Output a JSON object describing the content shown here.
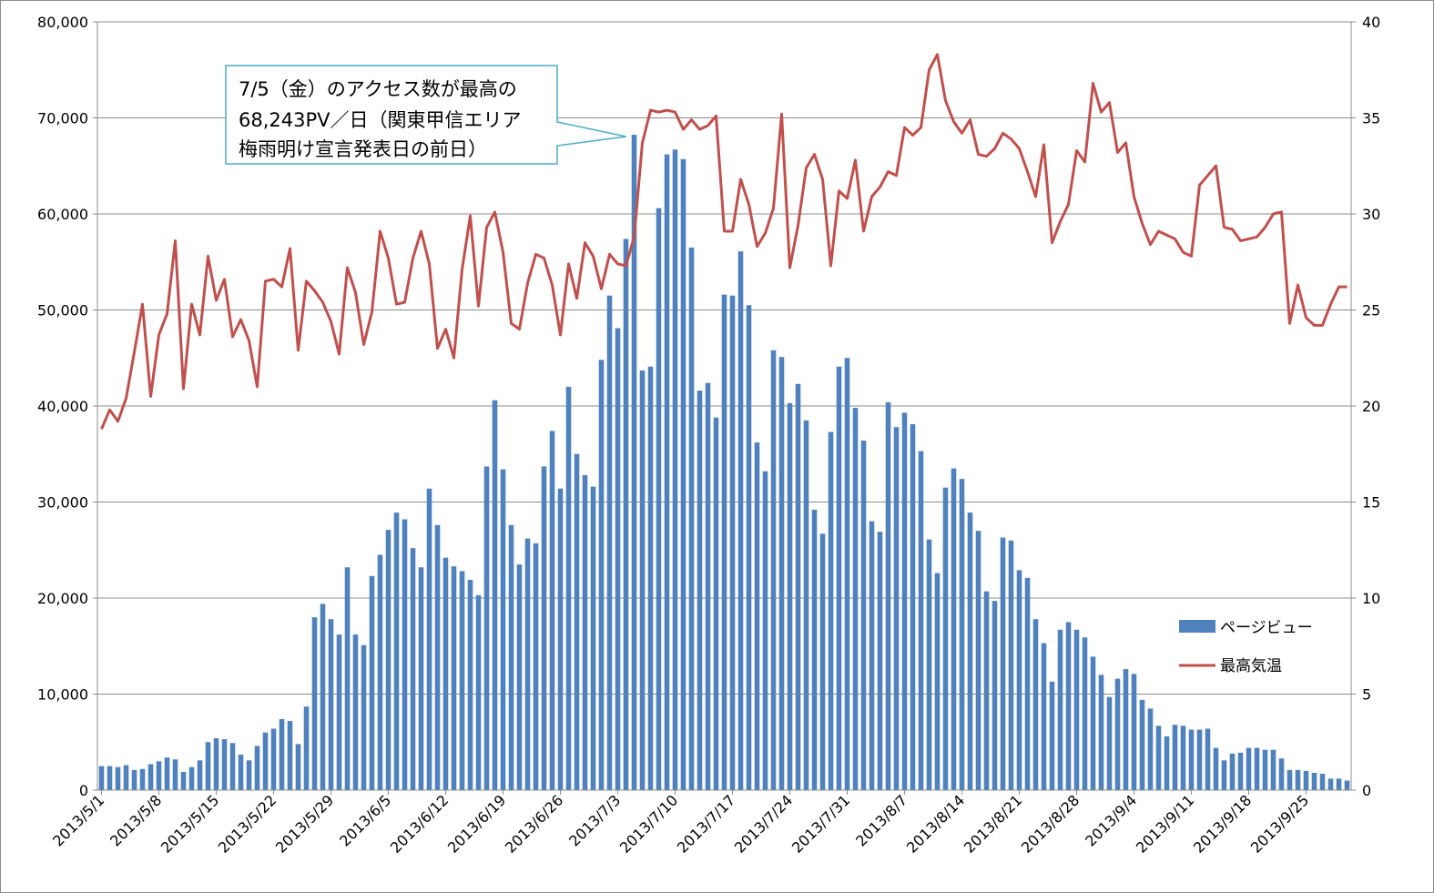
{
  "chart_data": {
    "type": "bar+line",
    "title": "",
    "xlabel": "",
    "ylabel": "",
    "ylim_left": [
      0,
      80000
    ],
    "ylim_right": [
      0,
      40
    ],
    "yticks_left": [
      "0",
      "10,000",
      "20,000",
      "30,000",
      "40,000",
      "50,000",
      "60,000",
      "70,000",
      "80,000"
    ],
    "yticks_right": [
      "0",
      "5",
      "10",
      "15",
      "20",
      "25",
      "30",
      "35",
      "40"
    ],
    "xtick_labels": [
      "2013/5/1",
      "2013/5/8",
      "2013/5/15",
      "2013/5/22",
      "2013/5/29",
      "2013/6/5",
      "2013/6/12",
      "2013/6/19",
      "2013/6/26",
      "2013/7/3",
      "2013/7/10",
      "2013/7/17",
      "2013/7/24",
      "2013/7/31",
      "2013/8/7",
      "2013/8/14",
      "2013/8/21",
      "2013/8/28",
      "2013/9/4",
      "2013/9/11",
      "2013/9/18",
      "2013/9/25"
    ],
    "grid": true,
    "legend_position": "right",
    "x_start": "2013/5/1",
    "x_end": "2013/9/30",
    "series": [
      {
        "name": "ページビュー",
        "type": "bar",
        "axis": "left",
        "color": "#4f81bd",
        "values": [
          2500,
          2500,
          2400,
          2600,
          2100,
          2200,
          2700,
          3000,
          3400,
          3200,
          1900,
          2400,
          3100,
          5000,
          5400,
          5300,
          4900,
          3700,
          3100,
          4600,
          6000,
          6400,
          7400,
          7200,
          4800,
          8700,
          18000,
          19400,
          17800,
          16200,
          23200,
          16200,
          15100,
          22300,
          24500,
          27100,
          28900,
          28200,
          25200,
          23200,
          31400,
          27600,
          24200,
          23300,
          22800,
          21900,
          20300,
          33700,
          40600,
          33400,
          27600,
          23500,
          26200,
          25700,
          33700,
          37400,
          31400,
          42000,
          35000,
          32800,
          31600,
          44800,
          51500,
          48100,
          57400,
          68243,
          43700,
          44100,
          60600,
          66200,
          66700,
          65700,
          56500,
          41600,
          42400,
          38800,
          51600,
          51500,
          56100,
          50500,
          36200,
          33200,
          45800,
          45100,
          40300,
          42300,
          38500,
          29200,
          26700,
          37300,
          44100,
          45000,
          39800,
          36400,
          28000,
          26900,
          40400,
          37800,
          39300,
          38100,
          35300,
          26100,
          22600,
          31500,
          33500,
          32400,
          28900,
          27000,
          20700,
          19700,
          26300,
          26000,
          22900,
          22100,
          17800,
          15300,
          11300,
          16700,
          17500,
          16700,
          15900,
          13900,
          12000,
          9700,
          11600,
          12600,
          12100,
          9400,
          8500,
          6700,
          5600,
          6800,
          6700,
          6300,
          6300,
          6400,
          4400,
          3100,
          3800,
          3900,
          4400,
          4400,
          4200,
          4200,
          3300,
          2100,
          2100,
          2000,
          1800,
          1700,
          1200,
          1200,
          1000
        ]
      },
      {
        "name": "最高気温",
        "type": "line",
        "axis": "right",
        "color": "#c0504d",
        "values": [
          18.8,
          19.8,
          19.2,
          20.4,
          22.8,
          25.3,
          20.5,
          23.7,
          24.8,
          28.6,
          20.9,
          25.3,
          23.7,
          27.8,
          25.5,
          26.6,
          23.6,
          24.5,
          23.4,
          21.0,
          26.5,
          26.6,
          26.2,
          28.2,
          22.9,
          26.5,
          26.0,
          25.4,
          24.4,
          22.7,
          27.2,
          25.9,
          23.2,
          24.9,
          29.1,
          27.7,
          25.3,
          25.4,
          27.7,
          29.1,
          27.4,
          23.0,
          24.0,
          22.5,
          27.1,
          29.9,
          25.2,
          29.3,
          30.1,
          28.0,
          24.3,
          24.0,
          26.4,
          27.9,
          27.7,
          26.3,
          23.7,
          27.4,
          25.6,
          28.5,
          27.8,
          26.1,
          27.9,
          27.4,
          27.3,
          28.8,
          33.7,
          35.4,
          35.3,
          35.4,
          35.3,
          34.4,
          34.9,
          34.4,
          34.6,
          35.1,
          29.1,
          29.1,
          31.8,
          30.5,
          28.3,
          29.0,
          30.3,
          35.2,
          27.2,
          29.4,
          32.4,
          33.1,
          31.8,
          27.3,
          31.2,
          30.8,
          32.8,
          29.1,
          30.9,
          31.4,
          32.2,
          32.0,
          34.5,
          34.1,
          34.5,
          37.5,
          38.3,
          35.9,
          34.8,
          34.2,
          34.9,
          33.1,
          33.0,
          33.4,
          34.2,
          33.9,
          33.4,
          32.2,
          30.9,
          33.6,
          28.5,
          29.6,
          30.5,
          33.3,
          32.7,
          36.8,
          35.3,
          35.8,
          33.2,
          33.7,
          30.9,
          29.5,
          28.4,
          29.1,
          28.9,
          28.7,
          28.0,
          27.8,
          31.5,
          32.0,
          32.5,
          29.3,
          29.2,
          28.6,
          28.7,
          28.8,
          29.3,
          30.0,
          30.1,
          24.3,
          26.3,
          24.6,
          24.2,
          24.2,
          25.3,
          26.2,
          26.2
        ]
      }
    ],
    "annotation": {
      "lines": [
        "7/5（金）のアクセス数が最高の",
        "68,243PV／日（関東甲信エリア",
        "梅雨明け宣言発表日の前日）"
      ],
      "target_x": "2013/7/5",
      "target_y": 68243
    }
  }
}
